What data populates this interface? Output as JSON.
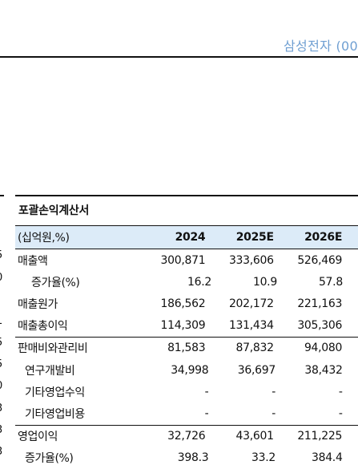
{
  "header": {
    "title": "삼성전자 (00"
  },
  "edge_glyphs": [
    "5",
    "0",
    "1",
    "5",
    "5",
    "0",
    "3",
    "3",
    "3"
  ],
  "table": {
    "title": "포괄손익계산서",
    "unit_label": "(십억원,%)",
    "years": [
      "2024",
      "2025E",
      "2026E"
    ],
    "rows": [
      {
        "label": "매출액",
        "indent": 0,
        "values": [
          "300,871",
          "333,606",
          "526,469"
        ]
      },
      {
        "label": "증가율(%)",
        "indent": 2,
        "values": [
          "16.2",
          "10.9",
          "57.8"
        ]
      },
      {
        "label": "매출원가",
        "indent": 0,
        "values": [
          "186,562",
          "202,172",
          "221,163"
        ]
      },
      {
        "label": "매출총이익",
        "indent": 0,
        "values": [
          "114,309",
          "131,434",
          "305,306"
        ]
      },
      {
        "label": "판매비와관리비",
        "indent": 0,
        "values": [
          "81,583",
          "87,832",
          "94,080"
        ]
      },
      {
        "label": "연구개발비",
        "indent": 1,
        "values": [
          "34,998",
          "36,697",
          "38,432"
        ]
      },
      {
        "label": "기타영업수익",
        "indent": 1,
        "values": [
          "-",
          "-",
          "-"
        ]
      },
      {
        "label": "기타영업비용",
        "indent": 1,
        "values": [
          "-",
          "-",
          "-"
        ]
      },
      {
        "label": "영업이익",
        "indent": 0,
        "values": [
          "32,726",
          "43,601",
          "211,225"
        ]
      },
      {
        "label": "증가율(%)",
        "indent": 1,
        "values": [
          "398.3",
          "33.2",
          "384.4"
        ]
      }
    ]
  }
}
